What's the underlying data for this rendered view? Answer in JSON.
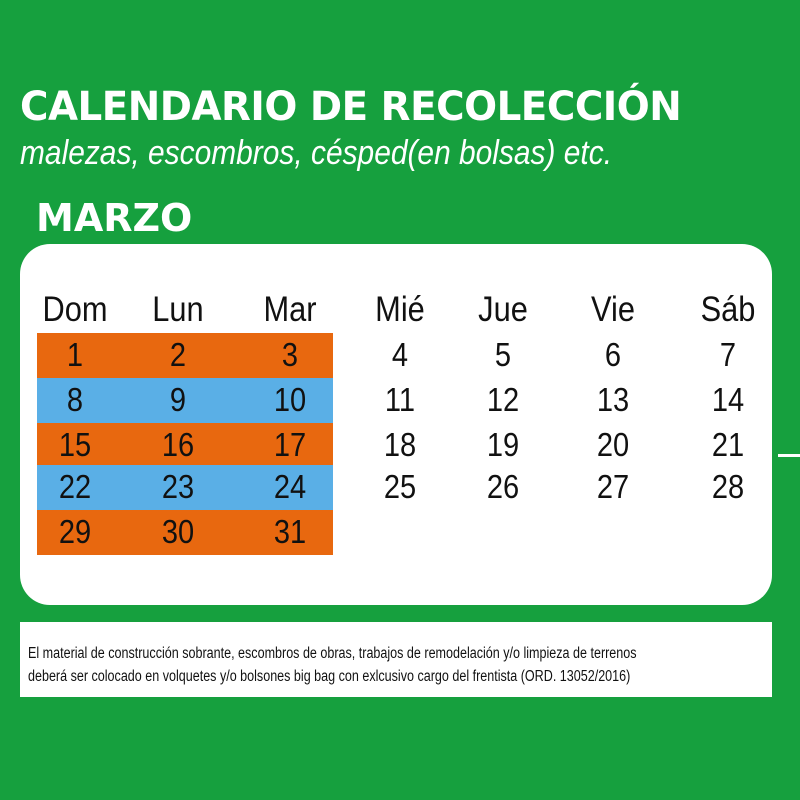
{
  "header": {
    "title": "CALENDARIO DE RECOLECCIÓN",
    "subtitle": "malezas, escombros, césped(en bolsas) etc.",
    "month": "MARZO"
  },
  "calendar": {
    "weekdays": [
      "Dom",
      "Lun",
      "Mar",
      "Mié",
      "Jue",
      "Vie",
      "Sáb"
    ],
    "weeks": [
      [
        "1",
        "2",
        "3",
        "4",
        "5",
        "6",
        "7"
      ],
      [
        "8",
        "9",
        "10",
        "11",
        "12",
        "13",
        "14"
      ],
      [
        "15",
        "16",
        "17",
        "18",
        "19",
        "20",
        "21"
      ],
      [
        "22",
        "23",
        "24",
        "25",
        "26",
        "27",
        "28"
      ],
      [
        "29",
        "30",
        "31",
        "",
        "",
        "",
        ""
      ]
    ],
    "highlight_columns": [
      "Dom",
      "Lun",
      "Mar"
    ],
    "row_colors": [
      "#e8680f",
      "#5aafe6",
      "#e8680f",
      "#5aafe6",
      "#e8680f"
    ]
  },
  "note": {
    "line1": "El material de construcción sobrante, escombros de obras, trabajos de remodelación y/o limpieza de terrenos",
    "line2": "deberá ser colocado en volquetes y/o bolsones big bag con exlcusivo cargo del frentista (ORD. 13052/2016)"
  },
  "colors": {
    "background": "#16a03e",
    "orange": "#e8680f",
    "blue": "#5aafe6"
  }
}
